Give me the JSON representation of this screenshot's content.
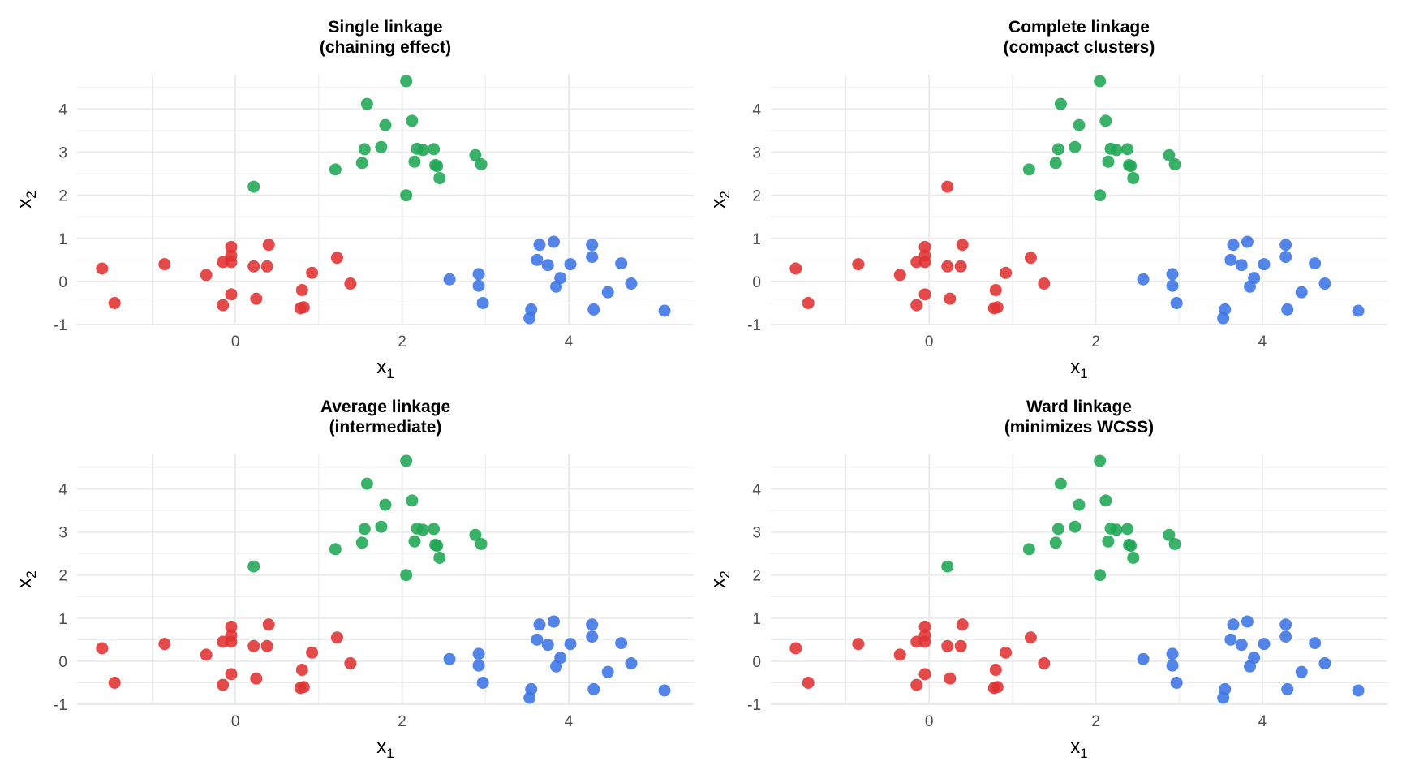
{
  "colors": {
    "cluster1": "#E03131",
    "cluster2": "#1FA653",
    "cluster3": "#3B74E6",
    "grid": "#EBEBEB",
    "text": "#4D4D4D"
  },
  "chart_data": [
    {
      "type": "scatter",
      "title": "Single linkage",
      "subtitle": "(chaining effect)",
      "xlabel": "x",
      "xlabel_sub": "1",
      "ylabel": "x",
      "ylabel_sub": "2",
      "xlim": [
        -1.9,
        5.5
      ],
      "ylim": [
        -1.0,
        4.8
      ],
      "xticks": [
        0,
        2,
        4
      ],
      "yticks": [
        -1,
        0,
        1,
        2,
        3,
        4
      ],
      "grid": true,
      "legend": "none",
      "series": [
        {
          "cluster": 1,
          "points": [
            [
              -1.6,
              0.3
            ],
            [
              -1.45,
              -0.5
            ],
            [
              -0.85,
              0.4
            ],
            [
              -0.35,
              0.15
            ],
            [
              -0.15,
              0.45
            ],
            [
              -0.05,
              0.8
            ],
            [
              -0.05,
              0.6
            ],
            [
              -0.05,
              0.45
            ],
            [
              -0.05,
              -0.3
            ],
            [
              -0.15,
              -0.55
            ],
            [
              0.22,
              0.35
            ],
            [
              0.25,
              -0.4
            ],
            [
              0.38,
              0.35
            ],
            [
              0.4,
              0.85
            ],
            [
              0.8,
              -0.2
            ],
            [
              0.92,
              0.2
            ],
            [
              0.78,
              -0.62
            ],
            [
              0.82,
              -0.6
            ],
            [
              1.22,
              0.55
            ],
            [
              1.38,
              -0.05
            ]
          ]
        },
        {
          "cluster": 2,
          "points": [
            [
              0.22,
              2.2
            ],
            [
              1.2,
              2.6
            ],
            [
              1.52,
              2.75
            ],
            [
              1.55,
              3.07
            ],
            [
              1.58,
              4.12
            ],
            [
              1.75,
              3.12
            ],
            [
              1.8,
              3.63
            ],
            [
              2.05,
              4.65
            ],
            [
              2.05,
              2.0
            ],
            [
              2.12,
              3.73
            ],
            [
              2.15,
              2.78
            ],
            [
              2.18,
              3.08
            ],
            [
              2.25,
              3.05
            ],
            [
              2.38,
              3.07
            ],
            [
              2.4,
              2.7
            ],
            [
              2.45,
              2.4
            ],
            [
              2.42,
              2.68
            ],
            [
              2.88,
              2.93
            ],
            [
              2.95,
              2.72
            ]
          ]
        },
        {
          "cluster": 3,
          "points": [
            [
              2.57,
              0.05
            ],
            [
              2.92,
              0.17
            ],
            [
              2.92,
              -0.1
            ],
            [
              2.97,
              -0.5
            ],
            [
              3.53,
              -0.85
            ],
            [
              3.55,
              -0.65
            ],
            [
              3.62,
              0.5
            ],
            [
              3.65,
              0.85
            ],
            [
              3.75,
              0.38
            ],
            [
              3.82,
              0.92
            ],
            [
              3.85,
              -0.12
            ],
            [
              3.9,
              0.08
            ],
            [
              4.02,
              0.4
            ],
            [
              4.28,
              0.85
            ],
            [
              4.28,
              0.57
            ],
            [
              4.3,
              -0.65
            ],
            [
              4.47,
              -0.25
            ],
            [
              4.63,
              0.42
            ],
            [
              4.75,
              -0.05
            ],
            [
              5.15,
              -0.68
            ]
          ]
        }
      ]
    },
    {
      "type": "scatter",
      "title": "Complete linkage",
      "subtitle": "(compact clusters)",
      "xlabel": "x",
      "xlabel_sub": "1",
      "ylabel": "x",
      "ylabel_sub": "2",
      "xlim": [
        -1.9,
        5.5
      ],
      "ylim": [
        -1.0,
        4.8
      ],
      "xticks": [
        0,
        2,
        4
      ],
      "yticks": [
        -1,
        0,
        1,
        2,
        3,
        4
      ],
      "grid": true,
      "legend": "none",
      "series": [
        {
          "cluster": 1,
          "points": [
            [
              -1.6,
              0.3
            ],
            [
              -1.45,
              -0.5
            ],
            [
              -0.85,
              0.4
            ],
            [
              -0.35,
              0.15
            ],
            [
              -0.15,
              0.45
            ],
            [
              -0.05,
              0.8
            ],
            [
              -0.05,
              0.6
            ],
            [
              -0.05,
              0.45
            ],
            [
              -0.05,
              -0.3
            ],
            [
              -0.15,
              -0.55
            ],
            [
              0.22,
              0.35
            ],
            [
              0.25,
              -0.4
            ],
            [
              0.38,
              0.35
            ],
            [
              0.4,
              0.85
            ],
            [
              0.8,
              -0.2
            ],
            [
              0.92,
              0.2
            ],
            [
              0.78,
              -0.62
            ],
            [
              0.82,
              -0.6
            ],
            [
              1.22,
              0.55
            ],
            [
              1.38,
              -0.05
            ],
            [
              0.22,
              2.2
            ]
          ]
        },
        {
          "cluster": 2,
          "points": [
            [
              1.2,
              2.6
            ],
            [
              1.52,
              2.75
            ],
            [
              1.55,
              3.07
            ],
            [
              1.58,
              4.12
            ],
            [
              1.75,
              3.12
            ],
            [
              1.8,
              3.63
            ],
            [
              2.05,
              4.65
            ],
            [
              2.05,
              2.0
            ],
            [
              2.12,
              3.73
            ],
            [
              2.15,
              2.78
            ],
            [
              2.18,
              3.08
            ],
            [
              2.25,
              3.05
            ],
            [
              2.38,
              3.07
            ],
            [
              2.4,
              2.7
            ],
            [
              2.45,
              2.4
            ],
            [
              2.42,
              2.68
            ],
            [
              2.88,
              2.93
            ],
            [
              2.95,
              2.72
            ]
          ]
        },
        {
          "cluster": 3,
          "points": [
            [
              2.57,
              0.05
            ],
            [
              2.92,
              0.17
            ],
            [
              2.92,
              -0.1
            ],
            [
              2.97,
              -0.5
            ],
            [
              3.53,
              -0.85
            ],
            [
              3.55,
              -0.65
            ],
            [
              3.62,
              0.5
            ],
            [
              3.65,
              0.85
            ],
            [
              3.75,
              0.38
            ],
            [
              3.82,
              0.92
            ],
            [
              3.85,
              -0.12
            ],
            [
              3.9,
              0.08
            ],
            [
              4.02,
              0.4
            ],
            [
              4.28,
              0.85
            ],
            [
              4.28,
              0.57
            ],
            [
              4.3,
              -0.65
            ],
            [
              4.47,
              -0.25
            ],
            [
              4.63,
              0.42
            ],
            [
              4.75,
              -0.05
            ],
            [
              5.15,
              -0.68
            ]
          ]
        }
      ]
    },
    {
      "type": "scatter",
      "title": "Average linkage",
      "subtitle": "(intermediate)",
      "xlabel": "x",
      "xlabel_sub": "1",
      "ylabel": "x",
      "ylabel_sub": "2",
      "xlim": [
        -1.9,
        5.5
      ],
      "ylim": [
        -1.0,
        4.8
      ],
      "xticks": [
        0,
        2,
        4
      ],
      "yticks": [
        -1,
        0,
        1,
        2,
        3,
        4
      ],
      "grid": true,
      "legend": "none",
      "series": [
        {
          "cluster": 1,
          "points": [
            [
              -1.6,
              0.3
            ],
            [
              -1.45,
              -0.5
            ],
            [
              -0.85,
              0.4
            ],
            [
              -0.35,
              0.15
            ],
            [
              -0.15,
              0.45
            ],
            [
              -0.05,
              0.8
            ],
            [
              -0.05,
              0.6
            ],
            [
              -0.05,
              0.45
            ],
            [
              -0.05,
              -0.3
            ],
            [
              -0.15,
              -0.55
            ],
            [
              0.22,
              0.35
            ],
            [
              0.25,
              -0.4
            ],
            [
              0.38,
              0.35
            ],
            [
              0.4,
              0.85
            ],
            [
              0.8,
              -0.2
            ],
            [
              0.92,
              0.2
            ],
            [
              0.78,
              -0.62
            ],
            [
              0.82,
              -0.6
            ],
            [
              1.22,
              0.55
            ],
            [
              1.38,
              -0.05
            ]
          ]
        },
        {
          "cluster": 2,
          "points": [
            [
              0.22,
              2.2
            ],
            [
              1.2,
              2.6
            ],
            [
              1.52,
              2.75
            ],
            [
              1.55,
              3.07
            ],
            [
              1.58,
              4.12
            ],
            [
              1.75,
              3.12
            ],
            [
              1.8,
              3.63
            ],
            [
              2.05,
              4.65
            ],
            [
              2.05,
              2.0
            ],
            [
              2.12,
              3.73
            ],
            [
              2.15,
              2.78
            ],
            [
              2.18,
              3.08
            ],
            [
              2.25,
              3.05
            ],
            [
              2.38,
              3.07
            ],
            [
              2.4,
              2.7
            ],
            [
              2.45,
              2.4
            ],
            [
              2.42,
              2.68
            ],
            [
              2.88,
              2.93
            ],
            [
              2.95,
              2.72
            ]
          ]
        },
        {
          "cluster": 3,
          "points": [
            [
              2.57,
              0.05
            ],
            [
              2.92,
              0.17
            ],
            [
              2.92,
              -0.1
            ],
            [
              2.97,
              -0.5
            ],
            [
              3.53,
              -0.85
            ],
            [
              3.55,
              -0.65
            ],
            [
              3.62,
              0.5
            ],
            [
              3.65,
              0.85
            ],
            [
              3.75,
              0.38
            ],
            [
              3.82,
              0.92
            ],
            [
              3.85,
              -0.12
            ],
            [
              3.9,
              0.08
            ],
            [
              4.02,
              0.4
            ],
            [
              4.28,
              0.85
            ],
            [
              4.28,
              0.57
            ],
            [
              4.3,
              -0.65
            ],
            [
              4.47,
              -0.25
            ],
            [
              4.63,
              0.42
            ],
            [
              4.75,
              -0.05
            ],
            [
              5.15,
              -0.68
            ]
          ]
        }
      ]
    },
    {
      "type": "scatter",
      "title": "Ward linkage",
      "subtitle": "(minimizes WCSS)",
      "xlabel": "x",
      "xlabel_sub": "1",
      "ylabel": "x",
      "ylabel_sub": "2",
      "xlim": [
        -1.9,
        5.5
      ],
      "ylim": [
        -1.0,
        4.8
      ],
      "xticks": [
        0,
        2,
        4
      ],
      "yticks": [
        -1,
        0,
        1,
        2,
        3,
        4
      ],
      "grid": true,
      "legend": "none",
      "series": [
        {
          "cluster": 1,
          "points": [
            [
              -1.6,
              0.3
            ],
            [
              -1.45,
              -0.5
            ],
            [
              -0.85,
              0.4
            ],
            [
              -0.35,
              0.15
            ],
            [
              -0.15,
              0.45
            ],
            [
              -0.05,
              0.8
            ],
            [
              -0.05,
              0.6
            ],
            [
              -0.05,
              0.45
            ],
            [
              -0.05,
              -0.3
            ],
            [
              -0.15,
              -0.55
            ],
            [
              0.22,
              0.35
            ],
            [
              0.25,
              -0.4
            ],
            [
              0.38,
              0.35
            ],
            [
              0.4,
              0.85
            ],
            [
              0.8,
              -0.2
            ],
            [
              0.92,
              0.2
            ],
            [
              0.78,
              -0.62
            ],
            [
              0.82,
              -0.6
            ],
            [
              1.22,
              0.55
            ],
            [
              1.38,
              -0.05
            ]
          ]
        },
        {
          "cluster": 2,
          "points": [
            [
              0.22,
              2.2
            ],
            [
              1.2,
              2.6
            ],
            [
              1.52,
              2.75
            ],
            [
              1.55,
              3.07
            ],
            [
              1.58,
              4.12
            ],
            [
              1.75,
              3.12
            ],
            [
              1.8,
              3.63
            ],
            [
              2.05,
              4.65
            ],
            [
              2.05,
              2.0
            ],
            [
              2.12,
              3.73
            ],
            [
              2.15,
              2.78
            ],
            [
              2.18,
              3.08
            ],
            [
              2.25,
              3.05
            ],
            [
              2.38,
              3.07
            ],
            [
              2.4,
              2.7
            ],
            [
              2.45,
              2.4
            ],
            [
              2.42,
              2.68
            ],
            [
              2.88,
              2.93
            ],
            [
              2.95,
              2.72
            ]
          ]
        },
        {
          "cluster": 3,
          "points": [
            [
              2.57,
              0.05
            ],
            [
              2.92,
              0.17
            ],
            [
              2.92,
              -0.1
            ],
            [
              2.97,
              -0.5
            ],
            [
              3.53,
              -0.85
            ],
            [
              3.55,
              -0.65
            ],
            [
              3.62,
              0.5
            ],
            [
              3.65,
              0.85
            ],
            [
              3.75,
              0.38
            ],
            [
              3.82,
              0.92
            ],
            [
              3.85,
              -0.12
            ],
            [
              3.9,
              0.08
            ],
            [
              4.02,
              0.4
            ],
            [
              4.28,
              0.85
            ],
            [
              4.28,
              0.57
            ],
            [
              4.3,
              -0.65
            ],
            [
              4.47,
              -0.25
            ],
            [
              4.63,
              0.42
            ],
            [
              4.75,
              -0.05
            ],
            [
              5.15,
              -0.68
            ]
          ]
        }
      ]
    }
  ]
}
